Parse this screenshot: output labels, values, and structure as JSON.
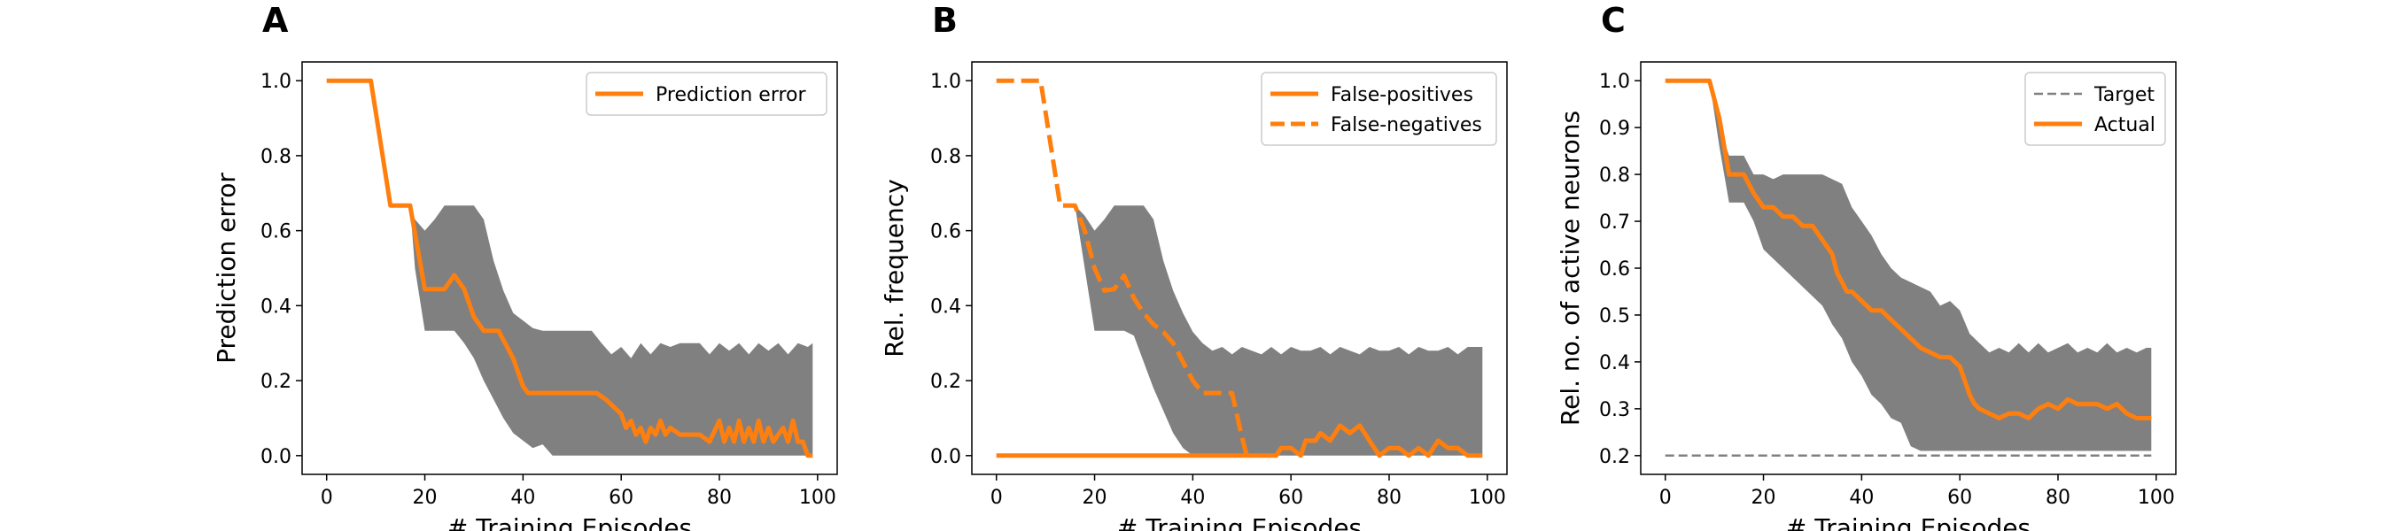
{
  "chart_data": [
    {
      "panel": "A",
      "type": "line",
      "xlabel": "# Training Episodes",
      "ylabel": "Prediction error",
      "xlim": [
        -5,
        104
      ],
      "ylim": [
        -0.05,
        1.05
      ],
      "xticks": [
        0,
        20,
        40,
        60,
        80,
        100
      ],
      "yticks": [
        0.0,
        0.2,
        0.4,
        0.6,
        0.8,
        1.0
      ],
      "ytick_labels": [
        "0.0",
        "0.2",
        "0.4",
        "0.6",
        "0.8",
        "1.0"
      ],
      "legend_position": "top-right",
      "series": [
        {
          "name": "Prediction error",
          "color": "#ff7f0e",
          "style": "solid",
          "x": [
            0,
            9,
            13,
            17,
            20,
            24,
            26,
            28,
            30,
            32,
            35,
            38,
            40,
            41,
            43,
            45,
            48,
            55,
            57,
            60,
            61,
            62,
            63,
            64,
            65,
            66,
            67,
            68,
            69,
            70,
            72,
            74,
            76,
            78,
            80,
            81,
            82,
            83,
            84,
            85,
            86,
            87,
            88,
            89,
            90,
            91,
            92,
            93,
            94,
            95,
            96,
            97,
            98,
            99
          ],
          "y": [
            1.0,
            1.0,
            0.667,
            0.667,
            0.444,
            0.444,
            0.481,
            0.444,
            0.37,
            0.333,
            0.333,
            0.259,
            0.185,
            0.167,
            0.167,
            0.167,
            0.167,
            0.167,
            0.148,
            0.111,
            0.074,
            0.093,
            0.056,
            0.074,
            0.037,
            0.074,
            0.056,
            0.093,
            0.056,
            0.074,
            0.056,
            0.056,
            0.056,
            0.037,
            0.093,
            0.037,
            0.074,
            0.037,
            0.093,
            0.037,
            0.074,
            0.037,
            0.093,
            0.037,
            0.074,
            0.037,
            0.056,
            0.074,
            0.037,
            0.093,
            0.037,
            0.037,
            0.0,
            0.0
          ]
        }
      ],
      "band": {
        "color": "#808080",
        "x": [
          0,
          9,
          13,
          17,
          18,
          20,
          22,
          24,
          26,
          28,
          30,
          32,
          34,
          36,
          38,
          40,
          42,
          44,
          46,
          48,
          50,
          52,
          54,
          56,
          58,
          60,
          62,
          64,
          66,
          68,
          70,
          72,
          74,
          76,
          78,
          80,
          82,
          84,
          86,
          88,
          90,
          92,
          94,
          96,
          98,
          99
        ],
        "upper": [
          1.0,
          1.0,
          0.667,
          0.667,
          0.63,
          0.6,
          0.63,
          0.667,
          0.667,
          0.667,
          0.667,
          0.63,
          0.52,
          0.44,
          0.38,
          0.36,
          0.34,
          0.333,
          0.333,
          0.333,
          0.333,
          0.333,
          0.333,
          0.3,
          0.27,
          0.29,
          0.26,
          0.3,
          0.27,
          0.3,
          0.29,
          0.3,
          0.3,
          0.3,
          0.27,
          0.3,
          0.28,
          0.3,
          0.27,
          0.3,
          0.28,
          0.3,
          0.27,
          0.3,
          0.29,
          0.3
        ],
        "lower": [
          1.0,
          1.0,
          0.667,
          0.667,
          0.5,
          0.333,
          0.333,
          0.333,
          0.333,
          0.3,
          0.26,
          0.2,
          0.15,
          0.1,
          0.06,
          0.04,
          0.02,
          0.03,
          0.0,
          0.0,
          0.0,
          0.0,
          0.0,
          0.0,
          0.0,
          0.0,
          0.0,
          0.0,
          0.0,
          0.0,
          0.0,
          0.0,
          0.0,
          0.0,
          0.0,
          0.0,
          0.0,
          0.0,
          0.0,
          0.0,
          0.0,
          0.0,
          0.0,
          0.0,
          0.0,
          0.0
        ]
      }
    },
    {
      "panel": "B",
      "type": "line",
      "xlabel": "# Training Episodes",
      "ylabel": "Rel. frequency",
      "xlim": [
        -5,
        104
      ],
      "ylim": [
        -0.05,
        1.05
      ],
      "xticks": [
        0,
        20,
        40,
        60,
        80,
        100
      ],
      "yticks": [
        0.0,
        0.2,
        0.4,
        0.6,
        0.8,
        1.0
      ],
      "ytick_labels": [
        "0.0",
        "0.2",
        "0.4",
        "0.6",
        "0.8",
        "1.0"
      ],
      "legend_position": "top-right",
      "series": [
        {
          "name": "False-positives",
          "color": "#ff7f0e",
          "style": "solid",
          "x": [
            0,
            55,
            57,
            58,
            60,
            62,
            63,
            65,
            66,
            68,
            70,
            72,
            74,
            76,
            78,
            80,
            82,
            84,
            86,
            88,
            90,
            92,
            94,
            96,
            98,
            99
          ],
          "y": [
            0.0,
            0.0,
            0.0,
            0.02,
            0.02,
            0.0,
            0.04,
            0.04,
            0.06,
            0.04,
            0.08,
            0.06,
            0.08,
            0.04,
            0.0,
            0.02,
            0.02,
            0.0,
            0.02,
            0.0,
            0.04,
            0.02,
            0.02,
            0.0,
            0.0,
            0.0
          ]
        },
        {
          "name": "False-negatives",
          "color": "#ff7f0e",
          "style": "dashed",
          "x": [
            0,
            9,
            13,
            16,
            18,
            20,
            22,
            24,
            26,
            28,
            30,
            32,
            34,
            36,
            38,
            40,
            42,
            44,
            46,
            48,
            50,
            51
          ],
          "y": [
            1.0,
            1.0,
            0.667,
            0.667,
            0.6,
            0.5,
            0.44,
            0.444,
            0.48,
            0.42,
            0.38,
            0.35,
            0.33,
            0.3,
            0.25,
            0.2,
            0.167,
            0.167,
            0.167,
            0.167,
            0.05,
            0.0
          ]
        }
      ],
      "band": {
        "color": "#808080",
        "x": [
          0,
          9,
          13,
          16,
          18,
          20,
          22,
          24,
          26,
          28,
          30,
          32,
          34,
          36,
          38,
          40,
          42,
          44,
          46,
          48,
          50,
          52,
          54,
          56,
          58,
          60,
          62,
          64,
          66,
          68,
          70,
          72,
          74,
          76,
          78,
          80,
          82,
          84,
          86,
          88,
          90,
          92,
          94,
          96,
          98,
          99
        ],
        "upper": [
          0.0,
          0.0,
          0.667,
          0.667,
          0.64,
          0.6,
          0.63,
          0.667,
          0.667,
          0.667,
          0.667,
          0.63,
          0.52,
          0.44,
          0.38,
          0.33,
          0.3,
          0.28,
          0.29,
          0.27,
          0.29,
          0.28,
          0.27,
          0.29,
          0.27,
          0.29,
          0.28,
          0.28,
          0.29,
          0.27,
          0.29,
          0.28,
          0.27,
          0.29,
          0.28,
          0.28,
          0.29,
          0.27,
          0.29,
          0.28,
          0.28,
          0.29,
          0.27,
          0.29,
          0.29,
          0.29
        ],
        "lower": [
          0.0,
          0.0,
          0.667,
          0.667,
          0.5,
          0.333,
          0.333,
          0.333,
          0.333,
          0.32,
          0.25,
          0.18,
          0.12,
          0.06,
          0.02,
          0.0,
          0.0,
          0.0,
          0.0,
          0.0,
          0.0,
          0.0,
          0.0,
          0.0,
          0.0,
          0.0,
          0.0,
          0.0,
          0.0,
          0.0,
          0.0,
          0.0,
          0.0,
          0.0,
          0.0,
          0.0,
          0.0,
          0.0,
          0.0,
          0.0,
          0.0,
          0.0,
          0.0,
          0.0,
          0.0,
          0.0
        ]
      }
    },
    {
      "panel": "C",
      "type": "line",
      "xlabel": "# Training Episodes",
      "ylabel": "Rel. no. of active neurons",
      "xlim": [
        -5,
        104
      ],
      "ylim": [
        0.16,
        1.04
      ],
      "xticks": [
        0,
        20,
        40,
        60,
        80,
        100
      ],
      "yticks": [
        0.2,
        0.3,
        0.4,
        0.5,
        0.6,
        0.7,
        0.8,
        0.9,
        1.0
      ],
      "ytick_labels": [
        "0.2",
        "0.3",
        "0.4",
        "0.5",
        "0.6",
        "0.7",
        "0.8",
        "0.9",
        "1.0"
      ],
      "legend_position": "top-right",
      "series": [
        {
          "name": "Target",
          "color": "#808080",
          "style": "dashed",
          "x": [
            0,
            99
          ],
          "y": [
            0.2,
            0.2
          ]
        },
        {
          "name": "Actual",
          "color": "#ff7f0e",
          "style": "solid",
          "x": [
            0,
            9,
            11,
            13,
            16,
            18,
            20,
            22,
            24,
            26,
            28,
            30,
            32,
            34,
            35,
            36,
            37,
            38,
            40,
            42,
            44,
            46,
            48,
            50,
            52,
            54,
            56,
            58,
            60,
            62,
            63,
            64,
            66,
            68,
            70,
            72,
            74,
            76,
            78,
            80,
            82,
            84,
            86,
            88,
            90,
            92,
            94,
            96,
            98,
            99
          ],
          "y": [
            1.0,
            1.0,
            0.92,
            0.8,
            0.8,
            0.76,
            0.73,
            0.73,
            0.71,
            0.71,
            0.69,
            0.69,
            0.66,
            0.63,
            0.59,
            0.57,
            0.55,
            0.55,
            0.53,
            0.51,
            0.51,
            0.49,
            0.47,
            0.45,
            0.43,
            0.42,
            0.41,
            0.41,
            0.39,
            0.33,
            0.31,
            0.3,
            0.29,
            0.28,
            0.29,
            0.29,
            0.28,
            0.3,
            0.31,
            0.3,
            0.32,
            0.31,
            0.31,
            0.31,
            0.3,
            0.31,
            0.29,
            0.28,
            0.28,
            0.28
          ]
        }
      ],
      "band": {
        "color": "#808080",
        "x": [
          0,
          9,
          11,
          13,
          16,
          18,
          20,
          22,
          24,
          26,
          28,
          30,
          32,
          34,
          36,
          38,
          40,
          42,
          44,
          46,
          48,
          50,
          52,
          54,
          56,
          58,
          60,
          62,
          64,
          66,
          68,
          70,
          72,
          74,
          76,
          78,
          80,
          82,
          84,
          86,
          88,
          90,
          92,
          94,
          96,
          98,
          99
        ],
        "upper": [
          1.0,
          1.0,
          0.9,
          0.84,
          0.84,
          0.8,
          0.8,
          0.79,
          0.8,
          0.8,
          0.8,
          0.8,
          0.8,
          0.79,
          0.78,
          0.73,
          0.7,
          0.67,
          0.63,
          0.6,
          0.58,
          0.57,
          0.56,
          0.55,
          0.52,
          0.53,
          0.51,
          0.46,
          0.44,
          0.42,
          0.43,
          0.42,
          0.44,
          0.42,
          0.44,
          0.42,
          0.43,
          0.44,
          0.42,
          0.43,
          0.42,
          0.44,
          0.42,
          0.43,
          0.42,
          0.43,
          0.43
        ],
        "lower": [
          1.0,
          1.0,
          0.86,
          0.74,
          0.74,
          0.7,
          0.64,
          0.62,
          0.6,
          0.58,
          0.56,
          0.54,
          0.52,
          0.48,
          0.45,
          0.4,
          0.37,
          0.33,
          0.31,
          0.28,
          0.27,
          0.22,
          0.21,
          0.21,
          0.21,
          0.21,
          0.21,
          0.21,
          0.21,
          0.21,
          0.21,
          0.21,
          0.21,
          0.21,
          0.21,
          0.21,
          0.21,
          0.21,
          0.21,
          0.21,
          0.21,
          0.21,
          0.21,
          0.21,
          0.21,
          0.21,
          0.21
        ]
      }
    }
  ]
}
